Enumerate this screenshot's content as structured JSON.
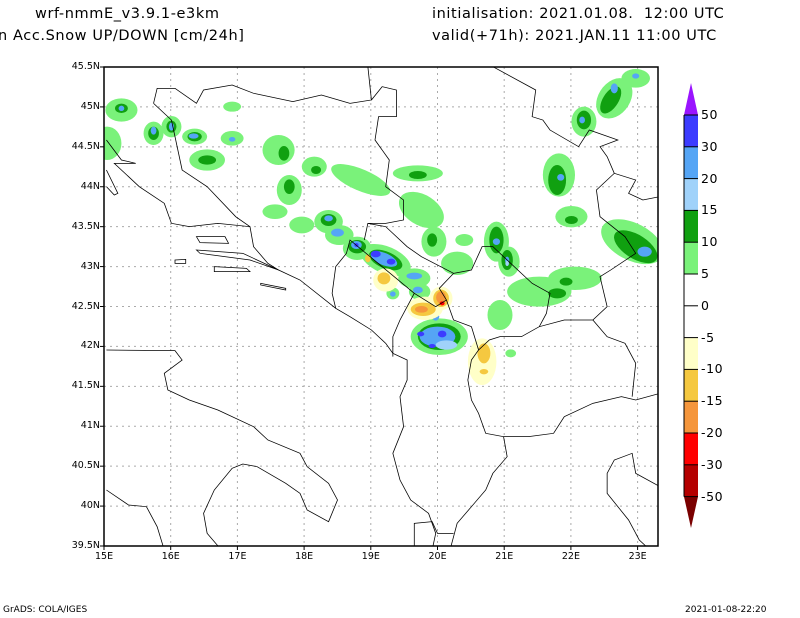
{
  "header": {
    "model": "wrf-nmmE_v3.9.1-e3km",
    "variable": "n Acc.Snow UP/DOWN [cm/24h]",
    "initialisation": "initialisation: 2021.01.08.  12:00 UTC",
    "valid": "valid(+71h): 2021.JAN.11 11:00 UTC"
  },
  "axes": {
    "lat_labels": [
      "45.5N",
      "45N",
      "44.5N",
      "44N",
      "43.5N",
      "43N",
      "42.5N",
      "42N",
      "41.5N",
      "41N",
      "40.5N",
      "40N",
      "39.5N"
    ],
    "lon_labels": [
      "15E",
      "16E",
      "17E",
      "18E",
      "19E",
      "20E",
      "21E",
      "22E",
      "23E"
    ]
  },
  "colorbar": {
    "labels": [
      "50",
      "30",
      "20",
      "15",
      "10",
      "5",
      "0",
      "-5",
      "-10",
      "-15",
      "-20",
      "-30",
      "-50"
    ],
    "top_arrow_color": "#9a14ff",
    "bottom_arrow_color": "#7a0000",
    "bands": [
      "#3c3cff",
      "#55a5f5",
      "#a0d2fa",
      "#10a010",
      "#7af27a",
      "#ffffff",
      "#ffffff",
      "#ffffc8",
      "#f5c840",
      "#f5963c",
      "#ff0000",
      "#b40000"
    ]
  },
  "footer": {
    "left": "GrADS: COLA/IGES",
    "right": "2021-01-08-22:20"
  }
}
